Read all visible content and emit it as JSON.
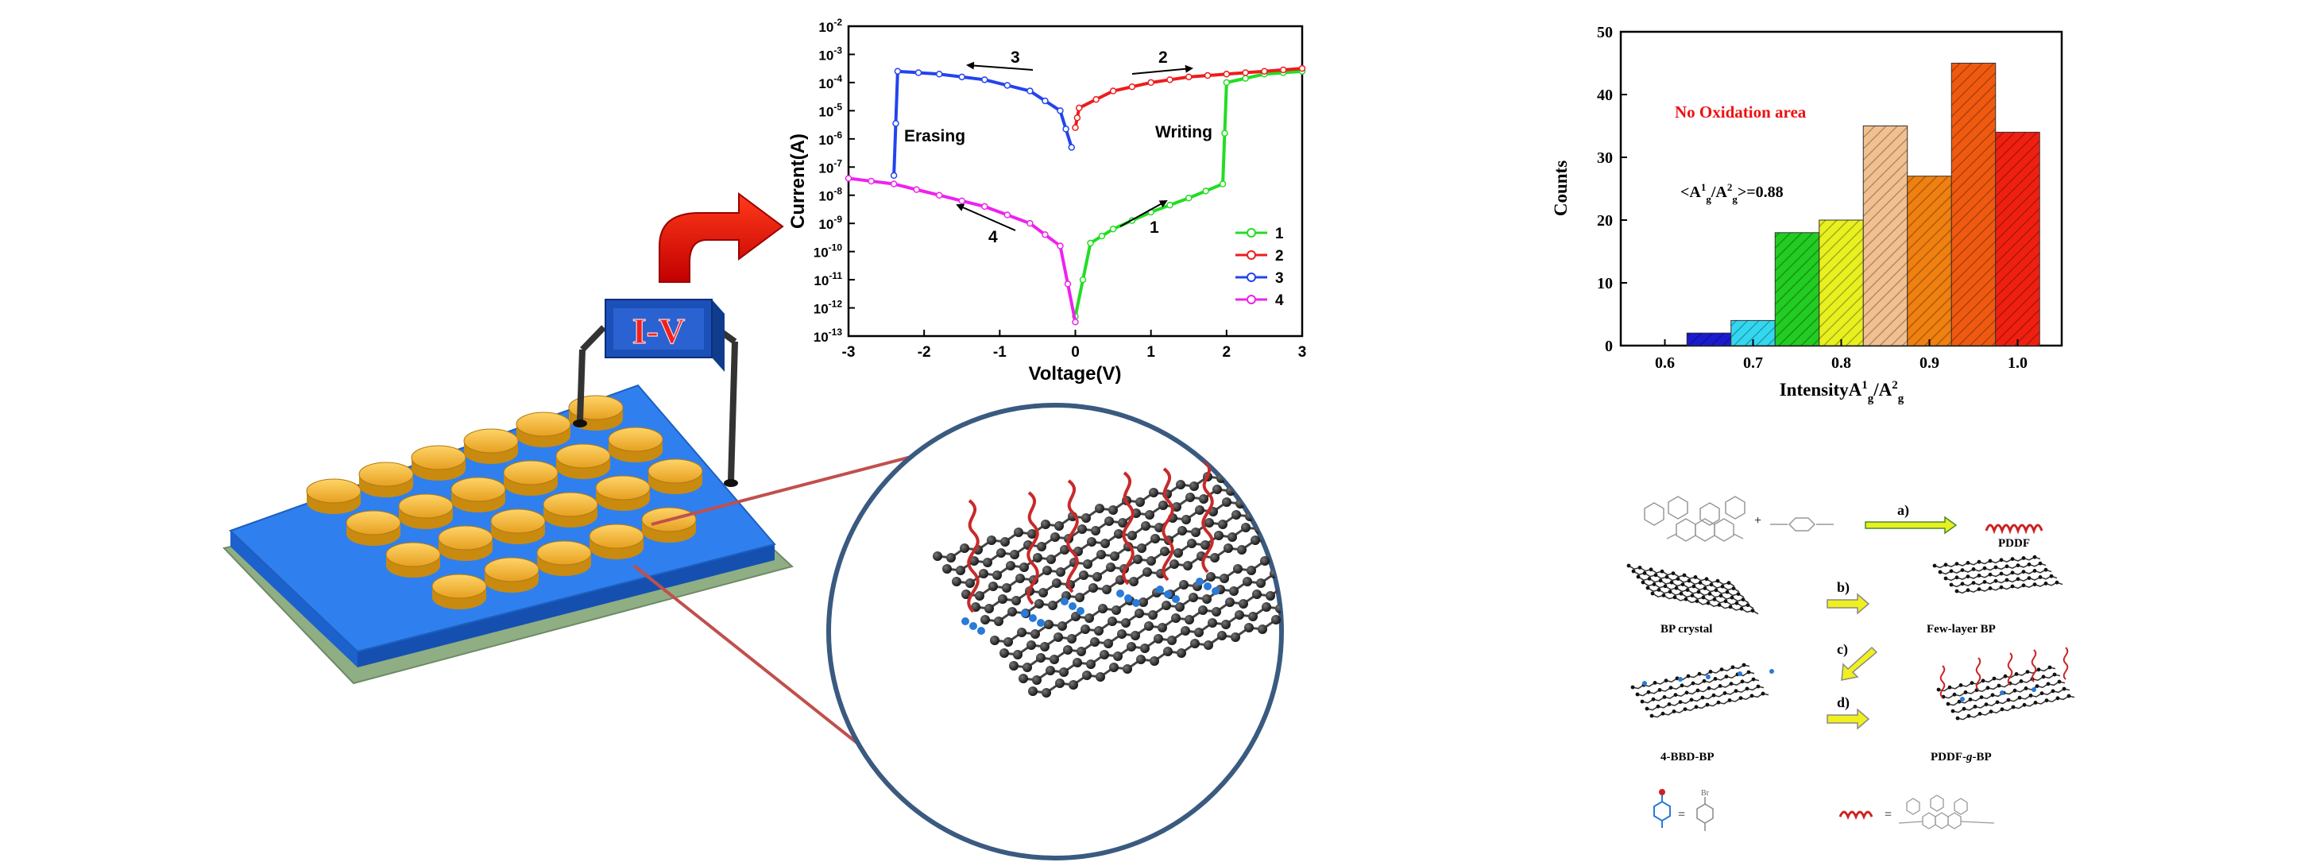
{
  "device": {
    "iv_label": "I-V"
  },
  "iv_chart": {
    "chart_data": {
      "type": "line",
      "xlabel": "Voltage(V)",
      "ylabel": "Current(A)",
      "xlim": [
        -3,
        3
      ],
      "ylim_log10": [
        -13,
        -2
      ],
      "y_scale": "log",
      "xticks": [
        "-3",
        "-2",
        "-1",
        "0",
        "1",
        "2",
        "3"
      ],
      "legend_position": "right",
      "series": [
        {
          "name": "1",
          "color": "#22dd22",
          "x": [
            0,
            0.2,
            0.5,
            1.0,
            1.5,
            1.95,
            2.0,
            2.5,
            3.0
          ],
          "log10_y": [
            -12.3,
            -9.7,
            -9.2,
            -8.6,
            -8.1,
            -7.6,
            -4.0,
            -3.7,
            -3.6
          ]
        },
        {
          "name": "2",
          "color": "#ee1c1c",
          "x": [
            0,
            0.05,
            0.5,
            1.0,
            1.5,
            2.0,
            2.5,
            3.0
          ],
          "log10_y": [
            -5.6,
            -4.9,
            -4.3,
            -4.0,
            -3.8,
            -3.7,
            -3.6,
            -3.5
          ]
        },
        {
          "name": "3",
          "color": "#2244ee",
          "x": [
            -0.05,
            -0.2,
            -0.6,
            -1.2,
            -1.8,
            -2.35,
            -2.4
          ],
          "log10_y": [
            -6.3,
            -5.0,
            -4.3,
            -3.9,
            -3.7,
            -3.6,
            -7.3
          ]
        },
        {
          "name": "4",
          "color": "#ee22ee",
          "x": [
            0,
            -0.2,
            -0.6,
            -1.2,
            -1.8,
            -2.4,
            -3.0
          ],
          "log10_y": [
            -12.5,
            -9.8,
            -9.0,
            -8.4,
            -8.0,
            -7.6,
            -7.4
          ]
        }
      ],
      "annotations": [
        {
          "text": "3",
          "role": "sweep-step"
        },
        {
          "text": "2",
          "role": "sweep-step"
        },
        {
          "text": "1",
          "role": "sweep-step"
        },
        {
          "text": "4",
          "role": "sweep-step"
        },
        {
          "text": "Erasing",
          "role": "region"
        },
        {
          "text": "Writing",
          "role": "region"
        }
      ]
    }
  },
  "histogram": {
    "chart_data": {
      "type": "bar",
      "xlabel_main": "Intensity",
      "xlabel_parts": {
        "a": "A",
        "s1": "1",
        "g": "g",
        "slash": "/",
        "s2": "2"
      },
      "ylabel": "Counts",
      "xlim": [
        0.55,
        1.05
      ],
      "ylim": [
        0,
        50
      ],
      "xticks": [
        "0.6",
        "0.7",
        "0.8",
        "0.9",
        "1.0"
      ],
      "yticks": [
        "0",
        "10",
        "20",
        "30",
        "40",
        "50"
      ],
      "bin_width": 0.05,
      "bins": [
        {
          "center": 0.65,
          "value": 2,
          "color": "#1a1ad0"
        },
        {
          "center": 0.7,
          "value": 4,
          "color": "#33d8f0"
        },
        {
          "center": 0.75,
          "value": 18,
          "color": "#22cc22"
        },
        {
          "center": 0.8,
          "value": 20,
          "color": "#e8f020"
        },
        {
          "center": 0.85,
          "value": 35,
          "color": "#f2c090"
        },
        {
          "center": 0.9,
          "value": 27,
          "color": "#f08010"
        },
        {
          "center": 0.95,
          "value": 45,
          "color": "#f05a10"
        },
        {
          "center": 1.0,
          "value": 34,
          "color": "#f02010"
        }
      ],
      "annotation_title": "No Oxidation area",
      "annotation_ratio": {
        "lt": "<",
        "a": "A",
        "s1": "1",
        "g": "g",
        "slash": "/",
        "s2": "2",
        "tail": ">=0.88"
      }
    }
  },
  "scheme": {
    "step_a": "a)",
    "step_b": "b)",
    "step_c": "c)",
    "step_d": "d)",
    "pddf": "PDDF",
    "bp_crystal": "BP crystal",
    "few_layer": "Few-layer BP",
    "bbd_bp": "4-BBD-BP",
    "pddf_g_bp_pre": "PDDF-",
    "pddf_g_bp_g": "g",
    "pddf_g_bp_post": "-BP",
    "legend_br": "Br"
  }
}
